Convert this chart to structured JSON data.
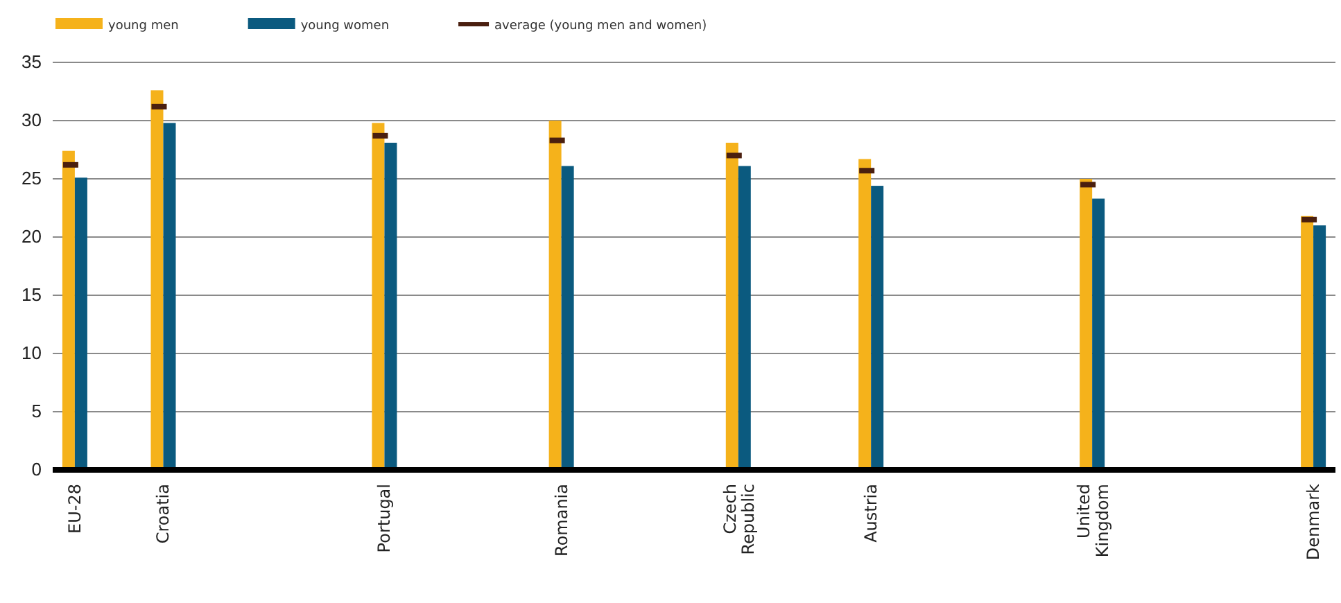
{
  "chart_data": {
    "type": "bar",
    "categories": [
      "EU-28",
      null,
      "Croatia",
      null,
      null,
      null,
      null,
      "Portugal",
      null,
      null,
      null,
      "Romania",
      null,
      null,
      null,
      "Czech Republic",
      null,
      null,
      "Austria",
      null,
      null,
      null,
      null,
      "United Kingdom",
      null,
      null,
      null,
      null,
      "Denmark"
    ],
    "series": [
      {
        "name": "young men",
        "color": "#f5b21b",
        "values": [
          27.4,
          null,
          32.6,
          null,
          null,
          null,
          null,
          29.8,
          null,
          null,
          null,
          30.0,
          null,
          null,
          null,
          28.1,
          null,
          null,
          26.7,
          null,
          null,
          null,
          null,
          25.0,
          null,
          null,
          null,
          null,
          21.8
        ]
      },
      {
        "name": "young women",
        "color": "#0b5a7f",
        "values": [
          25.1,
          null,
          29.8,
          null,
          null,
          null,
          null,
          28.1,
          null,
          null,
          null,
          26.1,
          null,
          null,
          null,
          26.1,
          null,
          null,
          24.4,
          null,
          null,
          null,
          null,
          23.3,
          null,
          null,
          null,
          null,
          21.0
        ]
      },
      {
        "name": "average (young men and women)",
        "type": "scatter",
        "color": "#4a1f0f",
        "values": [
          26.2,
          null,
          31.2,
          null,
          null,
          null,
          null,
          28.7,
          null,
          null,
          null,
          28.3,
          null,
          null,
          null,
          27.0,
          null,
          null,
          25.7,
          null,
          null,
          null,
          null,
          24.5,
          null,
          null,
          null,
          null,
          21.5
        ]
      }
    ],
    "ylim": [
      0,
      35
    ],
    "yticks": [
      0,
      5,
      10,
      15,
      20,
      25,
      30,
      35
    ],
    "grid": "y",
    "legend": "top left"
  }
}
